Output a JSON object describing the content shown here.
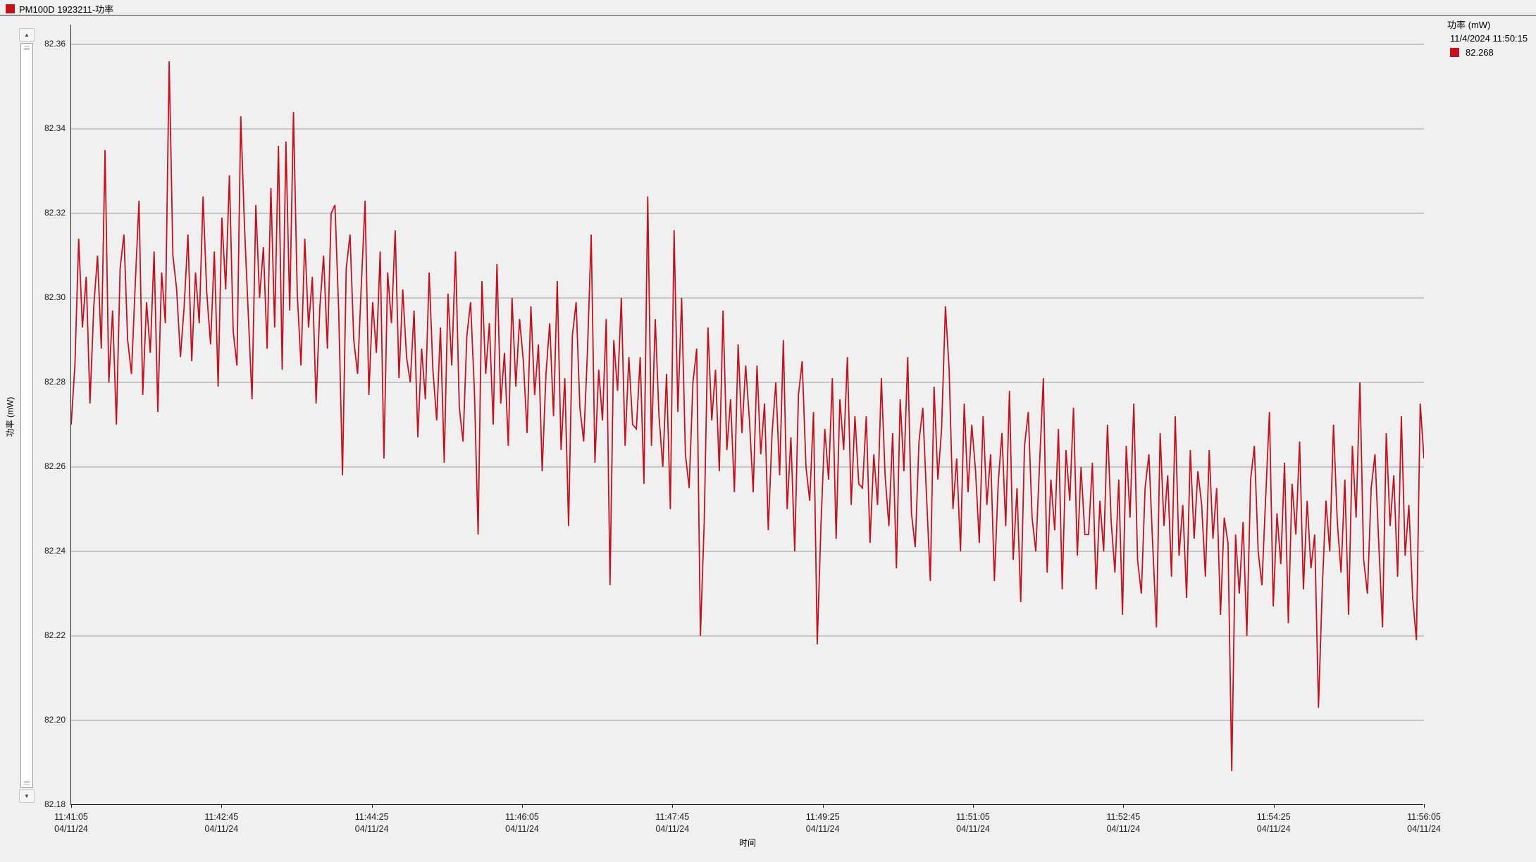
{
  "window": {
    "title": "PM100D 1923211-功率",
    "icon_color": "#c5101e"
  },
  "legend": {
    "series_label": "功率 (mW)",
    "timestamp": "11/4/2024 11:50:15",
    "current_value": "82.268",
    "marker_color": "#c5101e"
  },
  "scrollbar": {
    "up_icon": "▲",
    "down_icon": "▼"
  },
  "colors": {
    "background": "#f0f0f0",
    "gridline": "#9b9b9b",
    "axis": "#1c1c1c",
    "series": "#c5101e"
  },
  "chart_data": {
    "type": "line",
    "title": "PM100D 1923211-功率",
    "xlabel": "时间",
    "ylabel": "功率 (mW)",
    "ylim": [
      82.18,
      82.36
    ],
    "grid": true,
    "legend_position": "top-right",
    "y_ticks": [
      82.36,
      82.34,
      82.32,
      82.3,
      82.28,
      82.26,
      82.24,
      82.22,
      82.2,
      82.18
    ],
    "x_ticks": [
      {
        "time": "11:41:05",
        "date": "04/11/24"
      },
      {
        "time": "11:42:45",
        "date": "04/11/24"
      },
      {
        "time": "11:44:25",
        "date": "04/11/24"
      },
      {
        "time": "11:46:05",
        "date": "04/11/24"
      },
      {
        "time": "11:47:45",
        "date": "04/11/24"
      },
      {
        "time": "11:49:25",
        "date": "04/11/24"
      },
      {
        "time": "11:51:05",
        "date": "04/11/24"
      },
      {
        "time": "11:52:45",
        "date": "04/11/24"
      },
      {
        "time": "11:54:25",
        "date": "04/11/24"
      },
      {
        "time": "11:56:05",
        "date": "04/11/24"
      }
    ],
    "series": [
      {
        "name": "功率 (mW)",
        "color": "#c5101e",
        "values": [
          82.27,
          82.284,
          82.314,
          82.293,
          82.305,
          82.275,
          82.298,
          82.31,
          82.288,
          82.335,
          82.28,
          82.297,
          82.27,
          82.307,
          82.315,
          82.29,
          82.282,
          82.303,
          82.323,
          82.277,
          82.299,
          82.287,
          82.311,
          82.273,
          82.306,
          82.294,
          82.356,
          82.31,
          82.302,
          82.286,
          82.298,
          82.315,
          82.285,
          82.306,
          82.294,
          82.324,
          82.301,
          82.289,
          82.311,
          82.279,
          82.319,
          82.302,
          82.329,
          82.292,
          82.284,
          82.343,
          82.317,
          82.296,
          82.276,
          82.322,
          82.3,
          82.312,
          82.288,
          82.326,
          82.293,
          82.336,
          82.283,
          82.337,
          82.297,
          82.344,
          82.301,
          82.284,
          82.314,
          82.293,
          82.305,
          82.275,
          82.298,
          82.31,
          82.288,
          82.32,
          82.322,
          82.297,
          82.258,
          82.307,
          82.315,
          82.29,
          82.282,
          82.303,
          82.323,
          82.277,
          82.299,
          82.287,
          82.311,
          82.262,
          82.306,
          82.294,
          82.316,
          82.281,
          82.302,
          82.286,
          82.28,
          82.297,
          82.267,
          82.288,
          82.276,
          82.306,
          82.283,
          82.271,
          82.293,
          82.261,
          82.301,
          82.284,
          82.311,
          82.274,
          82.266,
          82.291,
          82.299,
          82.278,
          82.244,
          82.304,
          82.282,
          82.294,
          82.27,
          82.308,
          82.275,
          82.287,
          82.265,
          82.3,
          82.279,
          82.295,
          82.285,
          82.268,
          82.298,
          82.277,
          82.289,
          82.259,
          82.282,
          82.294,
          82.272,
          82.304,
          82.264,
          82.281,
          82.246,
          82.291,
          82.299,
          82.274,
          82.266,
          82.287,
          82.315,
          82.261,
          82.283,
          82.271,
          82.295,
          82.232,
          82.29,
          82.278,
          82.3,
          82.265,
          82.286,
          82.27,
          82.269,
          82.286,
          82.256,
          82.324,
          82.265,
          82.295,
          82.272,
          82.26,
          82.282,
          82.25,
          82.316,
          82.273,
          82.3,
          82.263,
          82.255,
          82.28,
          82.288,
          82.22,
          82.247,
          82.293,
          82.271,
          82.283,
          82.259,
          82.297,
          82.264,
          82.276,
          82.254,
          82.289,
          82.268,
          82.284,
          82.271,
          82.254,
          82.284,
          82.263,
          82.275,
          82.245,
          82.268,
          82.28,
          82.258,
          82.29,
          82.25,
          82.267,
          82.24,
          82.277,
          82.285,
          82.26,
          82.252,
          82.273,
          82.218,
          82.247,
          82.269,
          82.257,
          82.281,
          82.243,
          82.276,
          82.264,
          82.286,
          82.251,
          82.272,
          82.256,
          82.255,
          82.272,
          82.242,
          82.263,
          82.251,
          82.281,
          82.258,
          82.246,
          82.268,
          82.236,
          82.276,
          82.259,
          82.286,
          82.249,
          82.241,
          82.266,
          82.274,
          82.253,
          82.233,
          82.279,
          82.257,
          82.269,
          82.298,
          82.283,
          82.25,
          82.262,
          82.24,
          82.275,
          82.254,
          82.27,
          82.259,
          82.242,
          82.272,
          82.251,
          82.263,
          82.233,
          82.256,
          82.268,
          82.246,
          82.278,
          82.238,
          82.255,
          82.228,
          82.265,
          82.273,
          82.248,
          82.24,
          82.261,
          82.281,
          82.235,
          82.257,
          82.245,
          82.269,
          82.231,
          82.264,
          82.252,
          82.274,
          82.239,
          82.26,
          82.244,
          82.244,
          82.261,
          82.231,
          82.252,
          82.24,
          82.27,
          82.247,
          82.235,
          82.257,
          82.225,
          82.265,
          82.248,
          82.275,
          82.238,
          82.23,
          82.255,
          82.263,
          82.242,
          82.222,
          82.268,
          82.246,
          82.258,
          82.234,
          82.272,
          82.239,
          82.251,
          82.229,
          82.264,
          82.243,
          82.259,
          82.251,
          82.234,
          82.264,
          82.243,
          82.255,
          82.225,
          82.248,
          82.242,
          82.188,
          82.244,
          82.23,
          82.247,
          82.22,
          82.257,
          82.265,
          82.24,
          82.232,
          82.253,
          82.273,
          82.227,
          82.249,
          82.237,
          82.261,
          82.223,
          82.256,
          82.244,
          82.266,
          82.231,
          82.252,
          82.236,
          82.244,
          82.203,
          82.231,
          82.252,
          82.24,
          82.27,
          82.247,
          82.235,
          82.257,
          82.225,
          82.265,
          82.248,
          82.28,
          82.238,
          82.23,
          82.255,
          82.263,
          82.242,
          82.222,
          82.268,
          82.246,
          82.258,
          82.234,
          82.272,
          82.239,
          82.251,
          82.229,
          82.219,
          82.275,
          82.262
        ]
      }
    ]
  }
}
